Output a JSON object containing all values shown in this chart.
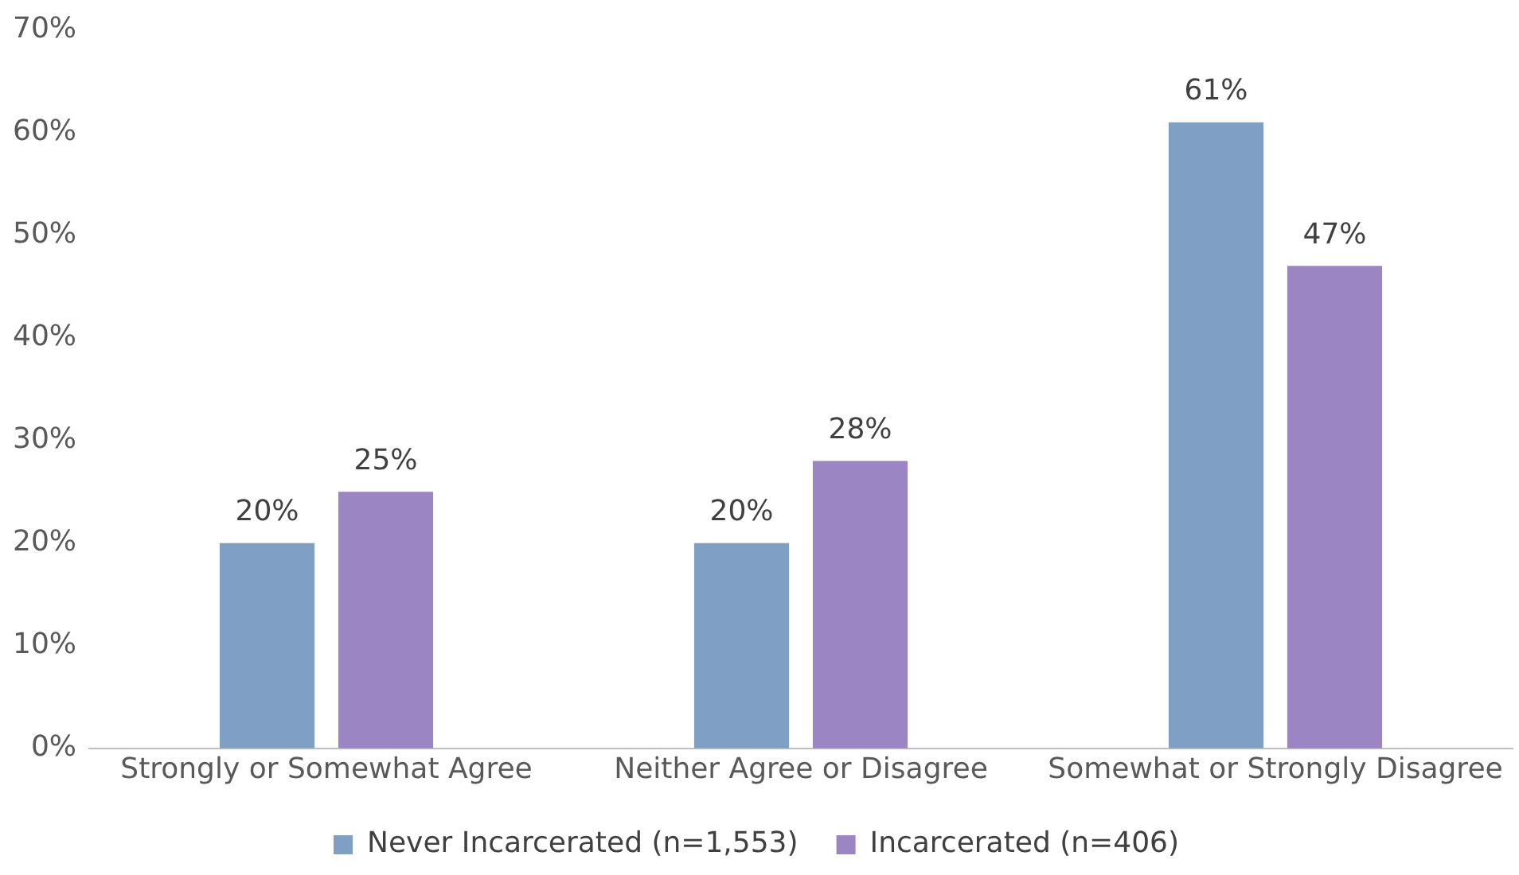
{
  "chart_data": {
    "type": "bar",
    "categories": [
      "Strongly or Somewhat Agree",
      "Neither Agree or Disagree",
      "Somewhat or Strongly Disagree"
    ],
    "series": [
      {
        "name": "Never Incarcerated (n=1,553)",
        "color": "#7f9fc4",
        "values": [
          20,
          20,
          61
        ],
        "value_labels": [
          "20%",
          "20%",
          "61%"
        ]
      },
      {
        "name": "Incarcerated (n=406)",
        "color": "#9b85c2",
        "values": [
          25,
          28,
          47
        ],
        "value_labels": [
          "25%",
          "28%",
          "47%"
        ]
      }
    ],
    "ylim": [
      0,
      70
    ],
    "yticks": [
      {
        "value": 0,
        "label": "0%"
      },
      {
        "value": 10,
        "label": "10%"
      },
      {
        "value": 20,
        "label": "20%"
      },
      {
        "value": 30,
        "label": "30%"
      },
      {
        "value": 40,
        "label": "40%"
      },
      {
        "value": 50,
        "label": "50%"
      },
      {
        "value": 60,
        "label": "60%"
      },
      {
        "value": 70,
        "label": "70%"
      }
    ],
    "grid": false,
    "legend": "bottom"
  }
}
